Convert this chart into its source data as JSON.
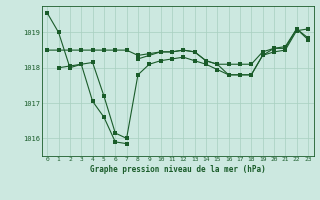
{
  "xlabel": "Graphe pression niveau de la mer (hPa)",
  "bg_color": "#cce8e0",
  "line_color": "#1a5c2a",
  "grid_color": "#a8cfc0",
  "ylim": [
    1015.5,
    1019.75
  ],
  "xlim": [
    -0.5,
    23.5
  ],
  "yticks": [
    1016,
    1017,
    1018,
    1019
  ],
  "xticks": [
    0,
    1,
    2,
    3,
    4,
    5,
    6,
    7,
    8,
    9,
    10,
    11,
    12,
    13,
    14,
    15,
    16,
    17,
    18,
    19,
    20,
    21,
    22,
    23
  ],
  "series1_x": [
    0,
    1,
    2,
    3,
    4,
    5,
    6,
    7
  ],
  "series1_y": [
    1019.55,
    1019.0,
    1018.0,
    1018.1,
    1017.05,
    1016.6,
    1015.9,
    1015.85
  ],
  "series2_x": [
    0,
    1,
    2,
    3,
    4,
    5,
    6,
    7,
    8,
    9,
    10,
    11,
    12,
    13,
    14,
    15,
    16,
    17,
    18,
    19,
    20,
    21,
    22,
    23
  ],
  "series2_y": [
    1018.5,
    1018.5,
    1018.5,
    1018.5,
    1018.5,
    1018.5,
    1018.5,
    1018.5,
    1018.35,
    1018.4,
    1018.45,
    1018.45,
    1018.5,
    1018.45,
    1018.2,
    1018.1,
    1017.8,
    1017.8,
    1017.8,
    1018.35,
    1018.55,
    1018.55,
    1019.1,
    1018.8
  ],
  "series3_x": [
    1,
    2,
    3,
    4,
    5,
    6,
    7,
    8,
    9,
    10,
    11,
    12,
    13,
    14,
    15,
    16,
    17,
    18,
    19,
    20,
    21,
    22,
    23
  ],
  "series3_y": [
    1018.0,
    1018.05,
    1018.1,
    1018.15,
    1017.2,
    1016.15,
    1016.0,
    1017.8,
    1018.1,
    1018.2,
    1018.25,
    1018.3,
    1018.2,
    1018.1,
    1017.95,
    1017.8,
    1017.8,
    1017.8,
    1018.35,
    1018.45,
    1018.5,
    1019.05,
    1019.1
  ],
  "series4_x": [
    8,
    9,
    10,
    11,
    12,
    13,
    14,
    15,
    16,
    17,
    18,
    19,
    20,
    21,
    22,
    23
  ],
  "series4_y": [
    1018.25,
    1018.35,
    1018.45,
    1018.45,
    1018.5,
    1018.45,
    1018.2,
    1018.1,
    1018.1,
    1018.1,
    1018.1,
    1018.45,
    1018.55,
    1018.6,
    1019.1,
    1018.85
  ]
}
